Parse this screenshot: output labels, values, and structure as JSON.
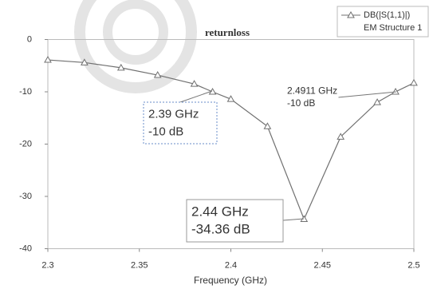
{
  "chart_data": {
    "type": "line",
    "title": "returnloss",
    "x_label": "Frequency (GHz)",
    "x": [
      2.3,
      2.32,
      2.34,
      2.36,
      2.38,
      2.39,
      2.4,
      2.42,
      2.44,
      2.46,
      2.48,
      2.49,
      2.5
    ],
    "series": [
      {
        "name": "DB(|S(1,1)|)",
        "subname": "EM Structure 1",
        "color": "#707070",
        "values": [
          -3.9,
          -4.4,
          -5.4,
          -6.8,
          -8.5,
          -10,
          -11.4,
          -16.6,
          -34.36,
          -18.6,
          -12,
          -10,
          -8.3
        ]
      }
    ],
    "xlim": [
      2.3,
      2.5
    ],
    "xticks": [
      2.3,
      2.35,
      2.4,
      2.45,
      2.5
    ],
    "ylim": [
      -40,
      0
    ],
    "yticks": [
      0,
      -10,
      -20,
      -30,
      -40
    ],
    "annotations": [
      [
        "2.39 GHz",
        "-10 dB"
      ],
      [
        "2.4911 GHz",
        "-10 dB"
      ],
      [
        "2.44 GHz",
        "-34.36 dB"
      ]
    ]
  }
}
